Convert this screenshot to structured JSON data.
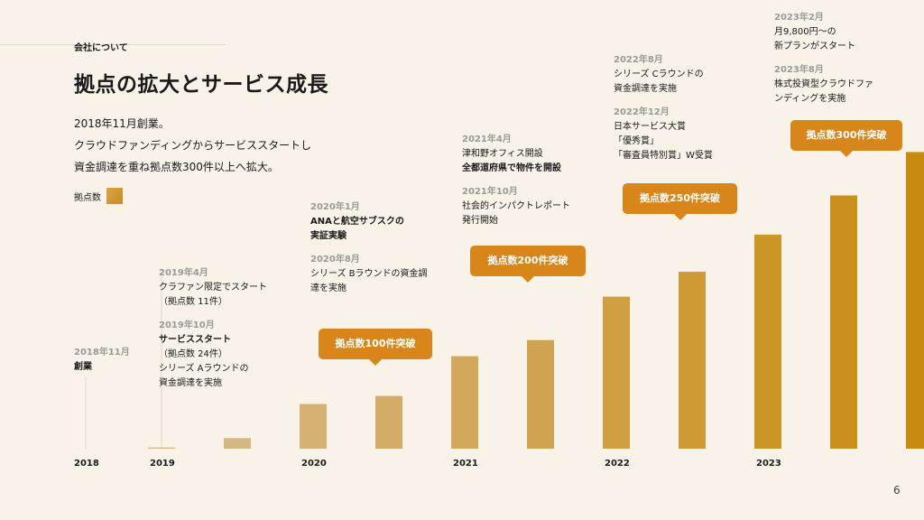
{
  "header": {
    "section_label": "会社について",
    "title": "拠点の拡大とサービス成長"
  },
  "intro": {
    "line1": "2018年11月創業。",
    "line2": "クラウドファンディングからサービススタートし",
    "line3": "資金調達を重ね拠点数300件以上へ拡大。"
  },
  "legend": {
    "label": "拠点数"
  },
  "page_number": "6",
  "colors": {
    "bar_start": "#d9c19a",
    "bar_end": "#c98b0f",
    "callout": "#d8861a",
    "background": "#f8f2e8"
  },
  "annotations": {
    "a2018": {
      "date": "2018年11月",
      "text": "創業"
    },
    "a2019": {
      "date1": "2019年4月",
      "text1a": "クラファン限定でスタート",
      "text1b": "（拠点数 11件）",
      "date2": "2019年10月",
      "text2a": "サービススタート",
      "text2b": "（拠点数 24件）",
      "text2c": "シリーズ Aラウンドの",
      "text2d": "資金調達を実施"
    },
    "a2020": {
      "date1": "2020年1月",
      "text1a": "ANAと航空サブスクの",
      "text1b": "実証実験",
      "date2": "2020年8月",
      "text2a": "シリーズ Bラウンドの資金調",
      "text2b": "達を実施"
    },
    "a2021": {
      "date1": "2021年4月",
      "text1a": "津和野オフィス開設",
      "text1b": "全都道府県で物件を開設",
      "date2": "2021年10月",
      "text2a": "社会的インパクトレポート",
      "text2b": "発行開始"
    },
    "a2022": {
      "date1": "2022年8月",
      "text1a": "シリーズ Cラウンドの",
      "text1b": "資金調達を実施",
      "date2": "2022年12月",
      "text2a": "日本サービス大賞",
      "text2b": "「優秀賞」",
      "text2c": "「審査員特別賞」W受賞"
    },
    "a2023": {
      "date1": "2023年2月",
      "text1a": "月9,800円〜の",
      "text1b": "新プランがスタート",
      "date2": "2023年8月",
      "text2a": "株式投資型クラウドファ",
      "text2b": "ンディングを実施"
    }
  },
  "callouts": {
    "c100": "拠点数100件突破",
    "c200": "拠点数200件突破",
    "c250": "拠点数250件突破",
    "c300": "拠点数300件突破"
  },
  "chart_data": {
    "type": "bar",
    "x_tick_labels": [
      "2018",
      "2019",
      "2020",
      "2021",
      "2022",
      "2023"
    ],
    "values": [
      0,
      2,
      17,
      72,
      85,
      149,
      175,
      245,
      285,
      345,
      408,
      478
    ],
    "ylim": [
      0,
      480
    ],
    "grid": false
  }
}
